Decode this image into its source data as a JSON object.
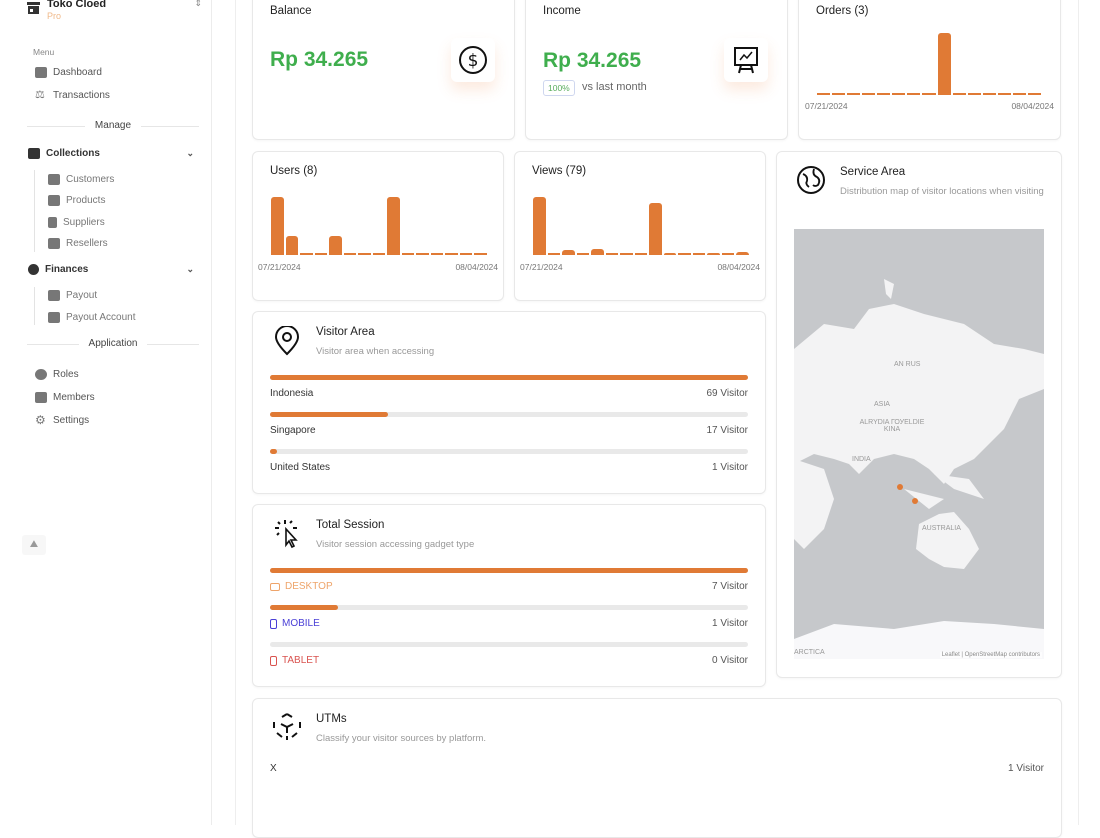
{
  "sidebar": {
    "brand": {
      "name": "Toko Cloed",
      "plan": "Pro"
    },
    "menu_label": "Menu",
    "menu": [
      {
        "label": "Dashboard",
        "icon": "dashboard-icon"
      },
      {
        "label": "Transactions",
        "icon": "scale-icon"
      }
    ],
    "manage_label": "Manage",
    "collections": {
      "label": "Collections",
      "items": [
        {
          "label": "Customers"
        },
        {
          "label": "Products"
        },
        {
          "label": "Suppliers"
        },
        {
          "label": "Resellers"
        }
      ]
    },
    "finances": {
      "label": "Finances",
      "items": [
        {
          "label": "Payout"
        },
        {
          "label": "Payout Account"
        }
      ]
    },
    "application_label": "Application",
    "app": [
      {
        "label": "Roles"
      },
      {
        "label": "Members"
      },
      {
        "label": "Settings"
      }
    ]
  },
  "balance": {
    "title": "Balance",
    "value": "Rp 34.265"
  },
  "income": {
    "title": "Income",
    "value": "Rp 34.265",
    "badge": "100%",
    "vs": "vs last month"
  },
  "chart_data": [
    {
      "type": "bar",
      "title": "Orders (3)",
      "x_start": "07/21/2024",
      "x_end": "08/04/2024",
      "values": [
        0,
        0,
        0,
        0,
        0,
        0,
        0,
        0,
        3,
        0,
        0,
        0,
        0,
        0,
        0
      ]
    },
    {
      "type": "bar",
      "title": "Users (8)",
      "x_start": "07/21/2024",
      "x_end": "08/04/2024",
      "values": [
        3,
        1,
        0,
        0,
        1,
        0,
        0,
        0,
        3,
        0,
        0,
        0,
        0,
        0,
        0
      ]
    },
    {
      "type": "bar",
      "title": "Views (79)",
      "x_start": "07/21/2024",
      "x_end": "08/04/2024",
      "values": [
        36,
        0,
        3,
        0,
        4,
        0,
        0,
        0,
        32,
        1,
        0,
        0,
        1,
        0,
        2
      ]
    }
  ],
  "visitor_area": {
    "title": "Visitor Area",
    "subtitle": "Visitor area when accessing",
    "rows": [
      {
        "label": "Indonesia",
        "value": "69 Visitor",
        "pct": 100
      },
      {
        "label": "Singapore",
        "value": "17 Visitor",
        "pct": 24.6
      },
      {
        "label": "United States",
        "value": "1 Visitor",
        "pct": 1.4
      }
    ]
  },
  "total_session": {
    "title": "Total Session",
    "subtitle": "Visitor session accessing gadget type",
    "rows": [
      {
        "label": "DESKTOP",
        "value": "7 Visitor",
        "pct": 100,
        "color": "#eea46a"
      },
      {
        "label": "MOBILE",
        "value": "1 Visitor",
        "pct": 14.3,
        "color": "#4a3fd6"
      },
      {
        "label": "TABLET",
        "value": "0 Visitor",
        "pct": 0,
        "color": "#d9534f"
      }
    ]
  },
  "service_area": {
    "title": "Service Area",
    "subtitle": "Distribution map of visitor locations when visiting",
    "map_labels": {
      "russia": "AN RUS",
      "asia": "ASIA",
      "china": "ALRYDIA ГОУЕLDIE KINA",
      "india": "INDIA",
      "australia": "AUSTRALIA",
      "antarctica": "ARCTICA"
    },
    "attribution": "Leaflet | OpenStreetMap contributors"
  },
  "utms": {
    "title": "UTMs",
    "subtitle": "Classify your visitor sources by platform.",
    "rows": [
      {
        "label": "X",
        "value": "1 Visitor"
      }
    ]
  },
  "colors": {
    "accent": "#e07a35",
    "green": "#3fae4d"
  }
}
